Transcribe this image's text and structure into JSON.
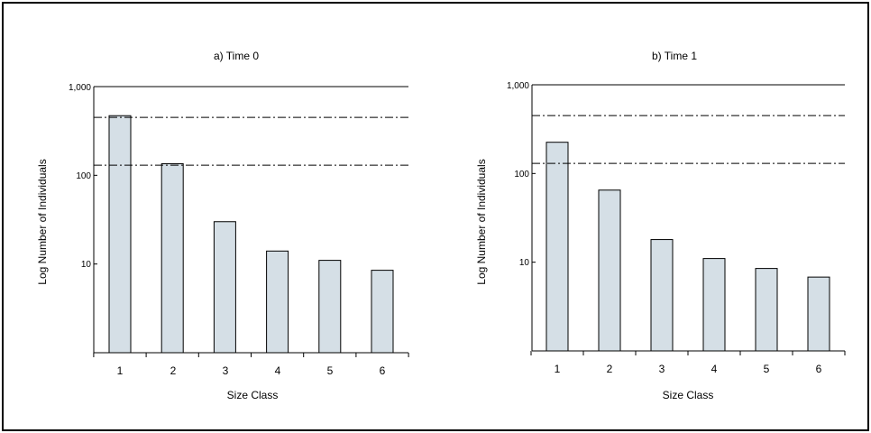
{
  "chart_data": [
    {
      "type": "bar",
      "title": "a) Time 0",
      "xlabel": "Size Class",
      "ylabel": "Log Number of Individuals",
      "yscale": "log",
      "ylim": [
        1,
        1000
      ],
      "ytick_labels": [
        "1,000",
        "100",
        "10"
      ],
      "ytick_values": [
        1000,
        100,
        10
      ],
      "categories": [
        "1",
        "2",
        "3",
        "4",
        "5",
        "6"
      ],
      "values": [
        470,
        135,
        30,
        14,
        11,
        8.5
      ],
      "reference_lines": [
        450,
        130
      ],
      "bar_color": "#d5dfe6",
      "line_color": "#000000"
    },
    {
      "type": "bar",
      "title": "b) Time 1",
      "xlabel": "Size Class",
      "ylabel": "Log Number of Individuals",
      "yscale": "log",
      "ylim": [
        1,
        1000
      ],
      "ytick_labels": [
        "1,000",
        "100",
        "10"
      ],
      "ytick_values": [
        1000,
        100,
        10
      ],
      "categories": [
        "1",
        "2",
        "3",
        "4",
        "5",
        "6"
      ],
      "values": [
        225,
        65,
        18,
        11,
        8.5,
        6.8
      ],
      "reference_lines": [
        450,
        130
      ],
      "bar_color": "#d5dfe6",
      "line_color": "#000000"
    }
  ]
}
